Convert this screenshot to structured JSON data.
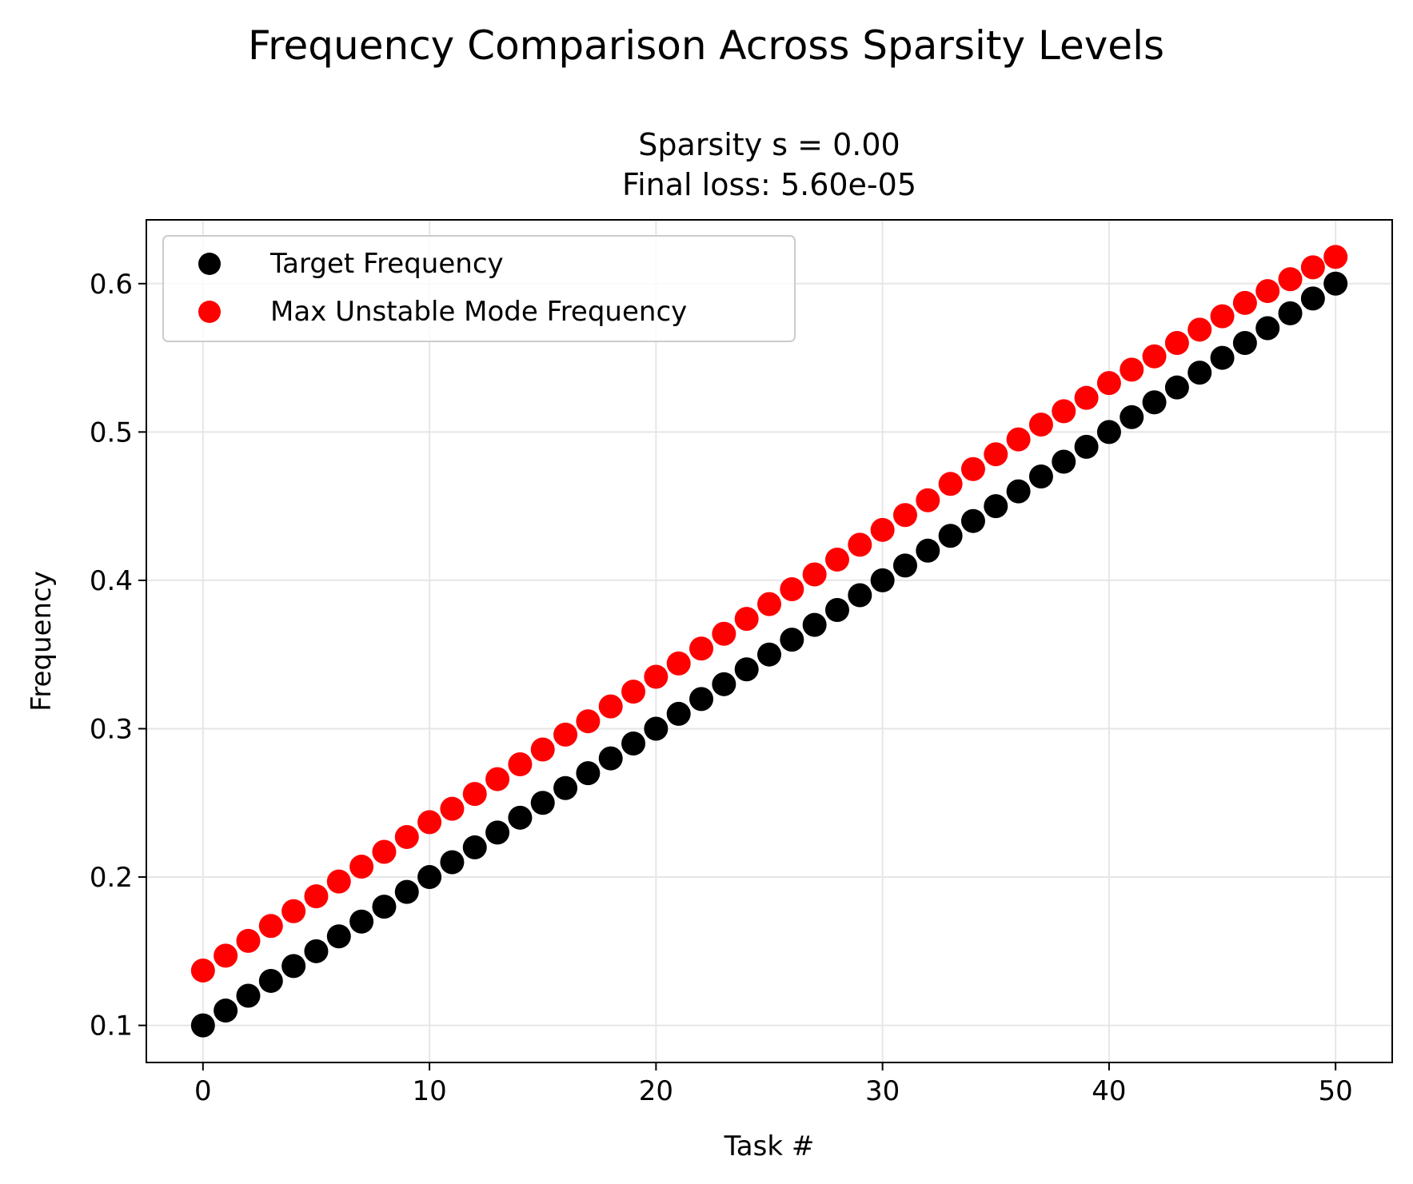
{
  "figure": {
    "suptitle": "Frequency Comparison Across Sparsity Levels"
  },
  "chart_data": {
    "type": "scatter",
    "title_line1": "Sparsity s = 0.00",
    "title_line2": "Final loss: 5.60e-05",
    "xlabel": "Task #",
    "ylabel": "Frequency",
    "xlim": [
      -2.5,
      52.5
    ],
    "ylim": [
      0.075,
      0.643
    ],
    "xticks": [
      0,
      10,
      20,
      30,
      40,
      50
    ],
    "xtick_labels": [
      "0",
      "10",
      "20",
      "30",
      "40",
      "50"
    ],
    "yticks": [
      0.1,
      0.2,
      0.3,
      0.4,
      0.5,
      0.6
    ],
    "ytick_labels": [
      "0.1",
      "0.2",
      "0.3",
      "0.4",
      "0.5",
      "0.6"
    ],
    "grid": true,
    "legend_position": "upper-left",
    "x": [
      0,
      1,
      2,
      3,
      4,
      5,
      6,
      7,
      8,
      9,
      10,
      11,
      12,
      13,
      14,
      15,
      16,
      17,
      18,
      19,
      20,
      21,
      22,
      23,
      24,
      25,
      26,
      27,
      28,
      29,
      30,
      31,
      32,
      33,
      34,
      35,
      36,
      37,
      38,
      39,
      40,
      41,
      42,
      43,
      44,
      45,
      46,
      47,
      48,
      49,
      50
    ],
    "series": [
      {
        "name": "Target Frequency",
        "color": "#000000",
        "values": [
          0.1,
          0.11,
          0.12,
          0.13,
          0.14,
          0.15,
          0.16,
          0.17,
          0.18,
          0.19,
          0.2,
          0.21,
          0.22,
          0.23,
          0.24,
          0.25,
          0.26,
          0.27,
          0.28,
          0.29,
          0.3,
          0.31,
          0.32,
          0.33,
          0.34,
          0.35,
          0.36,
          0.37,
          0.38,
          0.39,
          0.4,
          0.41,
          0.42,
          0.43,
          0.44,
          0.45,
          0.46,
          0.47,
          0.48,
          0.49,
          0.5,
          0.51,
          0.52,
          0.53,
          0.54,
          0.55,
          0.56,
          0.57,
          0.58,
          0.59,
          0.6
        ]
      },
      {
        "name": "Max Unstable Mode Frequency",
        "color": "#ff0000",
        "values": [
          0.137,
          0.147,
          0.157,
          0.167,
          0.177,
          0.187,
          0.197,
          0.207,
          0.217,
          0.227,
          0.237,
          0.246,
          0.256,
          0.266,
          0.276,
          0.286,
          0.296,
          0.305,
          0.315,
          0.325,
          0.335,
          0.344,
          0.354,
          0.364,
          0.374,
          0.384,
          0.394,
          0.404,
          0.414,
          0.424,
          0.434,
          0.444,
          0.454,
          0.465,
          0.475,
          0.485,
          0.495,
          0.505,
          0.514,
          0.523,
          0.533,
          0.542,
          0.551,
          0.56,
          0.569,
          0.578,
          0.587,
          0.595,
          0.603,
          0.611,
          0.618
        ]
      }
    ]
  }
}
